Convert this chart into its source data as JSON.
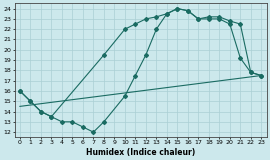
{
  "xlabel": "Humidex (Indice chaleur)",
  "bg_color": "#cce8ec",
  "line_color": "#1a6b62",
  "grid_color": "#aacfd4",
  "xlim": [
    -0.5,
    23.5
  ],
  "ylim": [
    11.5,
    24.5
  ],
  "xticks": [
    0,
    1,
    2,
    3,
    4,
    5,
    6,
    7,
    8,
    9,
    10,
    11,
    12,
    13,
    14,
    15,
    16,
    17,
    18,
    19,
    20,
    21,
    22,
    23
  ],
  "yticks": [
    12,
    13,
    14,
    15,
    16,
    17,
    18,
    19,
    20,
    21,
    22,
    23,
    24
  ],
  "line1_x": [
    0,
    1,
    2,
    3,
    4,
    5,
    6,
    7,
    8,
    10,
    11,
    12,
    13,
    14,
    15,
    16,
    17,
    18,
    19,
    20,
    21,
    22,
    23
  ],
  "line1_y": [
    16,
    15,
    14,
    13.5,
    13,
    13,
    12.5,
    12,
    13,
    15.5,
    17.5,
    19.5,
    22,
    23.5,
    24,
    23.8,
    23,
    23,
    23,
    22.5,
    19.2,
    17.8,
    17.5
  ],
  "line2_x": [
    0,
    1,
    2,
    3,
    8,
    10,
    11,
    12,
    13,
    14,
    15,
    16,
    17,
    18,
    19,
    20,
    21,
    22,
    23
  ],
  "line2_y": [
    16,
    15,
    14,
    13.5,
    19.5,
    22,
    22.5,
    23,
    23.2,
    23.5,
    24,
    23.8,
    23,
    23.2,
    23.2,
    22.8,
    22.5,
    17.8,
    17.5
  ],
  "line3_x": [
    0,
    23
  ],
  "line3_y": [
    14.5,
    17.5
  ]
}
